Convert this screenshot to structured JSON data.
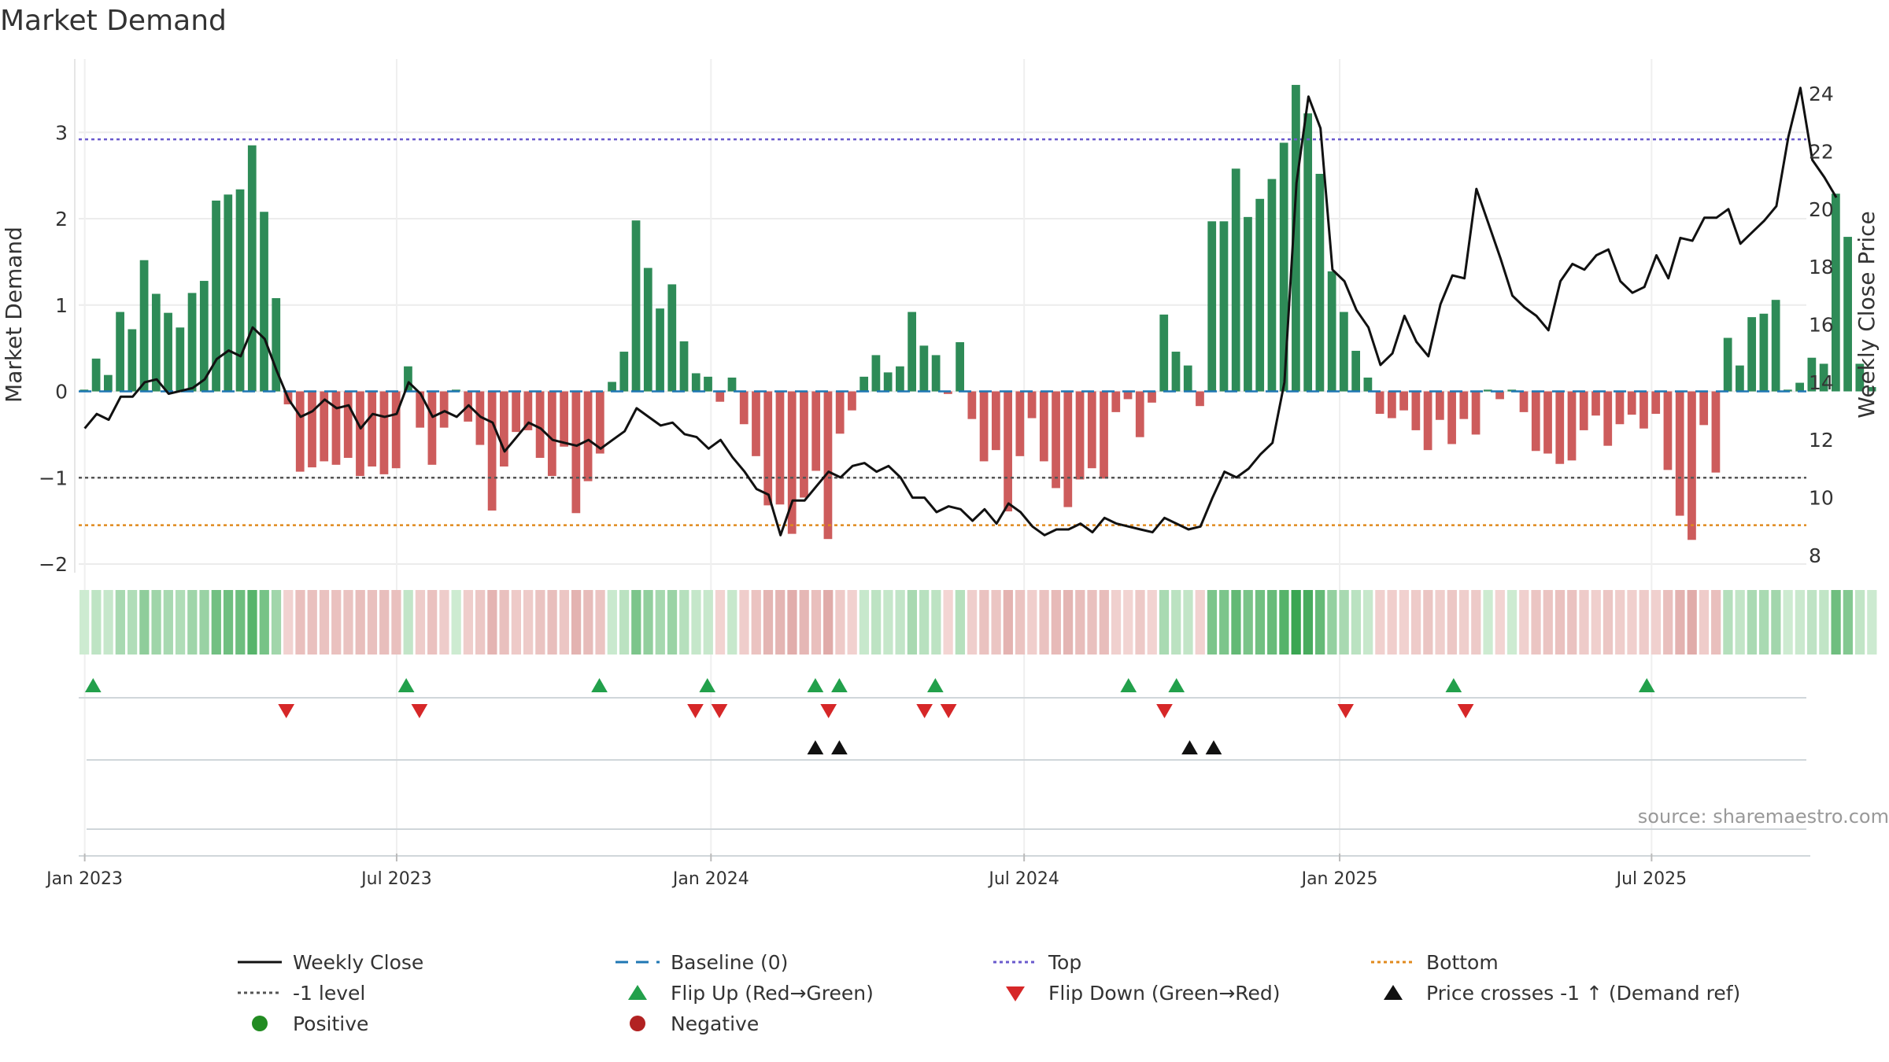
{
  "title": "Market Demand",
  "source": "source: sharemaestro.com",
  "colors": {
    "positive_bar": "#2e8b57",
    "negative_bar": "#cd5c5c",
    "close_line": "#111111",
    "baseline": "#1f77b4",
    "top_line": "#6a5acd",
    "bottom_line": "#e08a1e",
    "minus1_line": "#555555",
    "flip_up": "#22a04b",
    "flip_down": "#d62728",
    "cross": "#111111",
    "positive_dot": "#228b22",
    "negative_dot": "#b22222"
  },
  "chart_data": {
    "type": "bar+line",
    "title": "Market Demand",
    "ylabel_left": "Market Demand",
    "ylabel_right": "Weekly Close Price",
    "ylim_left": [
      -2.1,
      3.85
    ],
    "ylim_right": [
      7.4,
      25.2
    ],
    "left_ticks": [
      "3",
      "2",
      "1",
      "0",
      "−1",
      "−2"
    ],
    "left_tick_values": [
      3,
      2,
      1,
      0,
      -1,
      -2
    ],
    "right_ticks": [
      "24",
      "22",
      "20",
      "18",
      "16",
      "14",
      "12",
      "10",
      "8"
    ],
    "right_tick_values": [
      24,
      22,
      20,
      18,
      16,
      14,
      12,
      10,
      8
    ],
    "x_ticks": [
      "Jan 2023",
      "Jul 2023",
      "Jan 2024",
      "Jul 2024",
      "Jan 2025",
      "Jul 2025"
    ],
    "x_tick_weeks": [
      0.5,
      26.5,
      52.7,
      78.8,
      105.1,
      131.1
    ],
    "reference_lines": {
      "top": 2.92,
      "bottom": -1.55,
      "minus1": -1.0,
      "baseline": 0
    },
    "weeks": 144,
    "demand": [
      0.02,
      0.38,
      0.19,
      0.92,
      0.72,
      1.52,
      1.13,
      0.91,
      0.74,
      1.14,
      1.28,
      2.21,
      2.28,
      2.34,
      2.85,
      2.08,
      1.08,
      -0.15,
      -0.93,
      -0.88,
      -0.81,
      -0.85,
      -0.77,
      -0.98,
      -0.87,
      -0.96,
      -0.89,
      0.29,
      -0.42,
      -0.85,
      -0.42,
      0.02,
      -0.35,
      -0.62,
      -1.38,
      -0.87,
      -0.47,
      -0.45,
      -0.77,
      -0.98,
      -0.64,
      -1.41,
      -1.04,
      -0.72,
      0.11,
      0.46,
      1.98,
      1.43,
      0.96,
      1.24,
      0.58,
      0.21,
      0.17,
      -0.12,
      0.16,
      -0.38,
      -0.75,
      -1.32,
      -1.31,
      -1.65,
      -1.23,
      -0.92,
      -1.71,
      -0.49,
      -0.22,
      0.17,
      0.42,
      0.22,
      0.29,
      0.92,
      0.53,
      0.42,
      -0.03,
      0.57,
      -0.32,
      -0.81,
      -0.68,
      -1.39,
      -0.75,
      -0.31,
      -0.81,
      -1.12,
      -1.34,
      -1.02,
      -0.89,
      -1.01,
      -0.24,
      -0.09,
      -0.53,
      -0.13,
      0.89,
      0.46,
      0.3,
      -0.17,
      1.97,
      1.97,
      2.58,
      2.02,
      2.23,
      2.46,
      2.88,
      3.55,
      3.22,
      2.52,
      1.39,
      0.92,
      0.47,
      0.16,
      -0.26,
      -0.31,
      -0.22,
      -0.45,
      -0.68,
      -0.33,
      -0.61,
      -0.32,
      -0.5,
      0.02,
      -0.09,
      0.02,
      -0.24,
      -0.69,
      -0.72,
      -0.84,
      -0.8,
      -0.45,
      -0.28,
      -0.63,
      -0.38,
      -0.27,
      -0.43,
      -0.26,
      -0.91,
      -1.44,
      -1.72,
      -0.39,
      -0.94,
      0.62,
      0.3,
      0.86,
      0.9,
      1.06,
      0.02,
      0.1,
      0.39,
      0.32,
      2.29,
      1.79,
      0.32,
      0.05
    ],
    "close": [
      12.4,
      12.9,
      12.7,
      13.5,
      13.5,
      14.0,
      14.1,
      13.6,
      13.7,
      13.8,
      14.1,
      14.8,
      15.1,
      14.9,
      15.9,
      15.5,
      14.4,
      13.4,
      12.8,
      13.0,
      13.4,
      13.1,
      13.2,
      12.4,
      12.9,
      12.8,
      12.9,
      14.0,
      13.6,
      12.8,
      13.0,
      12.8,
      13.2,
      12.8,
      12.6,
      11.6,
      12.1,
      12.6,
      12.4,
      12.0,
      11.9,
      11.8,
      12.0,
      11.7,
      12.0,
      12.3,
      13.1,
      12.8,
      12.5,
      12.6,
      12.2,
      12.1,
      11.7,
      12.0,
      11.4,
      10.9,
      10.3,
      10.1,
      8.7,
      9.9,
      9.9,
      10.4,
      10.9,
      10.7,
      11.1,
      11.2,
      10.9,
      11.1,
      10.7,
      10.0,
      10.0,
      9.5,
      9.7,
      9.6,
      9.2,
      9.6,
      9.1,
      9.8,
      9.5,
      9.0,
      8.7,
      8.9,
      8.9,
      9.1,
      8.8,
      9.3,
      9.1,
      9.0,
      8.9,
      8.8,
      9.3,
      9.1,
      8.9,
      9.0,
      10.0,
      10.9,
      10.7,
      11.0,
      11.5,
      11.9,
      14.0,
      20.9,
      23.9,
      22.8,
      17.9,
      17.5,
      16.5,
      15.9,
      14.6,
      15.0,
      16.3,
      15.4,
      14.9,
      16.7,
      17.7,
      17.6,
      20.7,
      19.5,
      18.3,
      17.0,
      16.6,
      16.3,
      15.8,
      17.5,
      18.1,
      17.9,
      18.4,
      18.6,
      17.5,
      17.1,
      17.3,
      18.4,
      17.6,
      19.0,
      18.9,
      19.7,
      19.7,
      20.0,
      18.8,
      19.2,
      19.6,
      20.1,
      22.5,
      24.2,
      21.7,
      21.1,
      20.4
    ],
    "flip_up_weeks": [
      1.2,
      27.3,
      43.4,
      52.4,
      61.4,
      63.4,
      71.4,
      87.5,
      91.5,
      114.6,
      130.7
    ],
    "flip_down_weeks": [
      17.3,
      28.4,
      51.4,
      53.4,
      62.5,
      70.5,
      72.5,
      90.5,
      105.6,
      115.6
    ],
    "price_cross_weeks": [
      61.4,
      63.4,
      92.6,
      94.6
    ],
    "legend": [
      "Weekly Close",
      "Baseline (0)",
      "Top",
      "Bottom",
      "-1 level",
      "Flip Up (Red→Green)",
      "Flip Down (Green→Red)",
      "Price crosses -1 ↑ (Demand ref)",
      "Positive",
      "Negative"
    ]
  }
}
